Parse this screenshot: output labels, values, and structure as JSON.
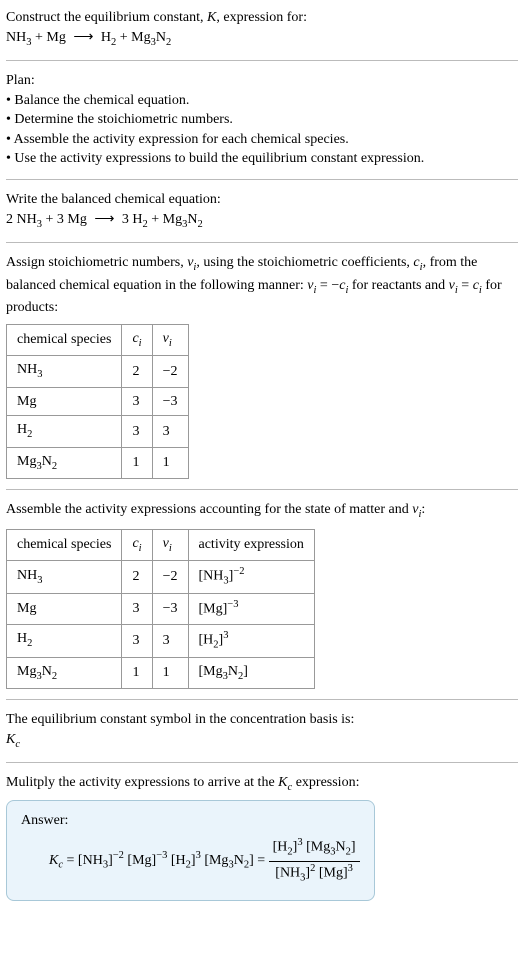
{
  "header": {
    "prompt_line1": "Construct the equilibrium constant, ",
    "prompt_k": "K",
    "prompt_line1_end": ", expression for:",
    "eq_lhs_1": "NH",
    "eq_lhs_1_sub": "3",
    "eq_plus1": " + Mg ",
    "eq_arrow": "⟶",
    "eq_rhs_1": " H",
    "eq_rhs_1_sub": "2",
    "eq_plus2": " + Mg",
    "eq_rhs_2_sub": "3",
    "eq_rhs_3": "N",
    "eq_rhs_3_sub": "2"
  },
  "plan": {
    "title": "Plan:",
    "items": [
      "Balance the chemical equation.",
      "Determine the stoichiometric numbers.",
      "Assemble the activity expression for each chemical species.",
      "Use the activity expressions to build the equilibrium constant expression."
    ]
  },
  "balanced": {
    "title": "Write the balanced chemical equation:",
    "c1": "2 NH",
    "c1_sub": "3",
    "c2": " + 3 Mg ",
    "arrow": "⟶",
    "c3": " 3 H",
    "c3_sub": "2",
    "c4": " + Mg",
    "c4_sub": "3",
    "c5": "N",
    "c5_sub": "2"
  },
  "assign": {
    "text_a": "Assign stoichiometric numbers, ",
    "nu_i": "ν",
    "nu_i_sub": "i",
    "text_b": ", using the stoichiometric coefficients, ",
    "c_i": "c",
    "c_i_sub": "i",
    "text_c": ", from the balanced chemical equation in the following manner: ",
    "rel1_a": "ν",
    "rel1_b": "i",
    "rel1_eq": " = −",
    "rel1_c": "c",
    "rel1_d": "i",
    "text_d": " for reactants and ",
    "rel2_a": "ν",
    "rel2_b": "i",
    "rel2_eq": " = ",
    "rel2_c": "c",
    "rel2_d": "i",
    "text_e": " for products:"
  },
  "table1": {
    "headers": {
      "h1": "chemical species",
      "h2_a": "c",
      "h2_b": "i",
      "h3_a": "ν",
      "h3_b": "i"
    },
    "rows": [
      {
        "sp_a": "NH",
        "sp_sub": "3",
        "c": "2",
        "nu": "−2"
      },
      {
        "sp_a": "Mg",
        "sp_sub": "",
        "c": "3",
        "nu": "−3"
      },
      {
        "sp_a": "H",
        "sp_sub": "2",
        "c": "3",
        "nu": "3"
      },
      {
        "sp_a": "Mg",
        "sp_sub": "3",
        "sp_b": "N",
        "sp_sub2": "2",
        "c": "1",
        "nu": "1"
      }
    ]
  },
  "assemble": {
    "text_a": "Assemble the activity expressions accounting for the state of matter and ",
    "nu": "ν",
    "nu_sub": "i",
    "text_b": ":"
  },
  "table2": {
    "headers": {
      "h1": "chemical species",
      "h2_a": "c",
      "h2_b": "i",
      "h3_a": "ν",
      "h3_b": "i",
      "h4": "activity expression"
    },
    "rows": [
      {
        "sp_a": "NH",
        "sp_sub": "3",
        "c": "2",
        "nu": "−2",
        "act_a": "[NH",
        "act_sub": "3",
        "act_b": "]",
        "act_sup": "−2"
      },
      {
        "sp_a": "Mg",
        "sp_sub": "",
        "c": "3",
        "nu": "−3",
        "act_a": "[Mg]",
        "act_sup": "−3"
      },
      {
        "sp_a": "H",
        "sp_sub": "2",
        "c": "3",
        "nu": "3",
        "act_a": "[H",
        "act_sub": "2",
        "act_b": "]",
        "act_sup": "3"
      },
      {
        "sp_a": "Mg",
        "sp_sub": "3",
        "sp_b": "N",
        "sp_sub2": "2",
        "c": "1",
        "nu": "1",
        "act_a": "[Mg",
        "act_sub": "3",
        "act_mid": "N",
        "act_sub2": "2",
        "act_b": "]"
      }
    ]
  },
  "eqconst": {
    "line1": "The equilibrium constant symbol in the concentration basis is:",
    "k": "K",
    "k_sub": "c"
  },
  "multiply": {
    "text_a": "Mulitply the activity expressions to arrive at the ",
    "k": "K",
    "k_sub": "c",
    "text_b": " expression:"
  },
  "answer": {
    "label": "Answer:",
    "k": "K",
    "k_sub": "c",
    "eq": " = ",
    "t1_a": "[NH",
    "t1_sub": "3",
    "t1_b": "]",
    "t1_sup": "−2",
    "sp1": " ",
    "t2_a": "[Mg]",
    "t2_sup": "−3",
    "sp2": " ",
    "t3_a": "[H",
    "t3_sub": "2",
    "t3_b": "]",
    "t3_sup": "3",
    "sp3": " ",
    "t4_a": "[Mg",
    "t4_sub": "3",
    "t4_mid": "N",
    "t4_sub2": "2",
    "t4_b": "]",
    "eq2": " = ",
    "num_a": "[H",
    "num_sub": "2",
    "num_b": "]",
    "num_sup": "3",
    "num_sp": " ",
    "num_c": "[Mg",
    "num_sub2": "3",
    "num_mid": "N",
    "num_sub3": "2",
    "num_d": "]",
    "den_a": "[NH",
    "den_sub": "3",
    "den_b": "]",
    "den_sup": "2",
    "den_sp": " ",
    "den_c": "[Mg]",
    "den_sup2": "3"
  },
  "style": {
    "bg": "#ffffff",
    "text": "#000000",
    "divider": "#bbbbbb",
    "table_border": "#999999",
    "answer_bg": "#eaf4fb",
    "answer_border": "#a8c8d8",
    "font_family": "Georgia, Times New Roman, serif",
    "font_size_pt": 14
  }
}
